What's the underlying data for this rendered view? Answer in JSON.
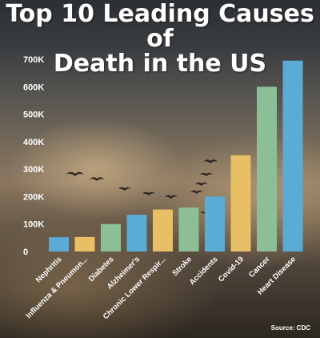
{
  "title_line1": "Top 10 Leading Causes of",
  "title_line2": "Death in the US",
  "source": "Source: CDC",
  "colors": {
    "blue": "#5aabd6",
    "yellow": "#e8bf64",
    "green": "#8cbf95"
  },
  "chart_data": {
    "type": "bar",
    "categories": [
      "Nephritis",
      "Influenza & Pneumon...",
      "Diabetes",
      "Alzheimer's",
      "Chronic Lower Respir...",
      "Stroke",
      "Accidents",
      "Covid-19",
      "Cancer",
      "Heart Disease"
    ],
    "values": [
      52000,
      53000,
      100000,
      134000,
      153000,
      160000,
      200000,
      350000,
      600000,
      695000
    ],
    "bar_colors": [
      "blue",
      "yellow",
      "green",
      "blue",
      "yellow",
      "green",
      "blue",
      "yellow",
      "green",
      "blue"
    ],
    "yticks": [
      "0",
      "100K",
      "200K",
      "300K",
      "400K",
      "500K",
      "600K",
      "700K"
    ],
    "ylim": [
      0,
      700000
    ],
    "grid": false,
    "legend": "none"
  }
}
